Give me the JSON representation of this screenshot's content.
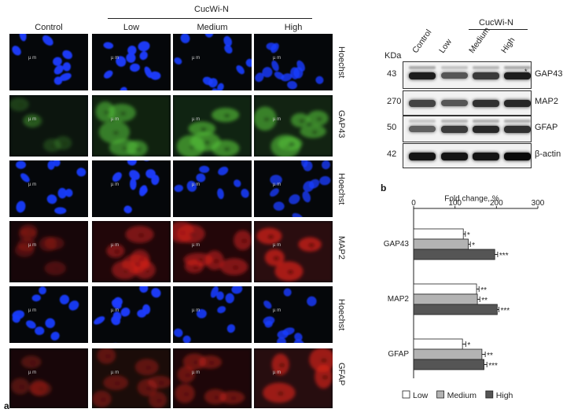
{
  "figure": {
    "panel_a_label": "a",
    "panel_b_label": "b",
    "treatment_group": "CucWi-N",
    "conditions": [
      "Control",
      "Low",
      "Medium",
      "High"
    ],
    "row_labels": [
      "Hoechst",
      "GAP43",
      "Hoechst",
      "MAP2",
      "Hoechst",
      "GFAP"
    ],
    "row_colors": [
      "#1a3cff",
      "#55c23a",
      "#1a3cff",
      "#e0201c",
      "#1a3cff",
      "#d8261c"
    ],
    "row_intensity": [
      [
        0.9,
        0.9,
        0.8,
        0.6
      ],
      [
        0.15,
        0.7,
        0.8,
        0.75
      ],
      [
        0.85,
        0.9,
        0.7,
        0.5
      ],
      [
        0.2,
        0.55,
        0.6,
        0.9
      ],
      [
        0.85,
        0.9,
        0.75,
        0.6
      ],
      [
        0.25,
        0.35,
        0.45,
        0.85
      ]
    ],
    "scale_text": "µ m"
  },
  "blot": {
    "kda_header": "KDa",
    "lanes": [
      "Control",
      "Low",
      "Medium",
      "High"
    ],
    "treatment_group": "CucWi-N",
    "asterisk": "*",
    "rows": [
      {
        "kda": "43",
        "protein": "GAP43",
        "intensity": [
          0.9,
          0.6,
          0.75,
          0.9
        ]
      },
      {
        "kda": "270",
        "protein": "MAP2",
        "intensity": [
          0.7,
          0.6,
          0.8,
          0.85
        ]
      },
      {
        "kda": "50",
        "protein": "GFAP",
        "intensity": [
          0.55,
          0.75,
          0.85,
          0.8
        ]
      },
      {
        "kda": "42",
        "protein": "β-actin",
        "intensity": [
          0.95,
          0.95,
          0.95,
          1.0
        ]
      }
    ]
  },
  "chart_data": {
    "type": "bar",
    "orientation": "horizontal",
    "title": "Fold change, %",
    "xlim": [
      0,
      300
    ],
    "xticks": [
      "0",
      "100",
      "200",
      "300"
    ],
    "categories": [
      "GAP43",
      "MAP2",
      "GFAP"
    ],
    "series": [
      {
        "name": "Low",
        "color": "#ffffff",
        "values": [
          120,
          152,
          118
        ],
        "errors": [
          5,
          6,
          8
        ],
        "sig": [
          "*",
          "**",
          "*"
        ]
      },
      {
        "name": "Medium",
        "color": "#b3b3b3",
        "values": [
          132,
          154,
          165
        ],
        "errors": [
          5,
          6,
          8
        ],
        "sig": [
          "*",
          "**",
          "**"
        ]
      },
      {
        "name": "High",
        "color": "#555555",
        "values": [
          196,
          202,
          170
        ],
        "errors": [
          7,
          4,
          7
        ],
        "sig": [
          "***",
          "***",
          "***"
        ]
      }
    ],
    "legend_position": "bottom"
  }
}
